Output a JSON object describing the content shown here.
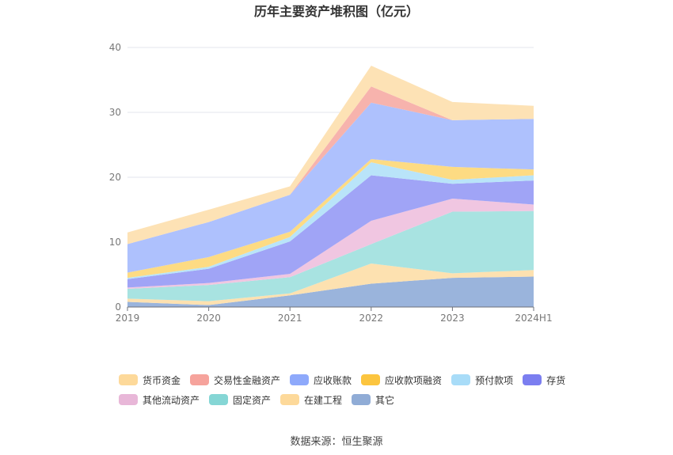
{
  "chart_data": {
    "type": "area",
    "stacked": true,
    "title": "历年主要资产堆积图（亿元）",
    "x": [
      "2019",
      "2020",
      "2021",
      "2022",
      "2023",
      "2024H1"
    ],
    "ylim": [
      0,
      40
    ],
    "yticks": [
      "0",
      "10",
      "20",
      "30",
      "40"
    ],
    "grid": true,
    "legend_position": "bottom",
    "series": [
      {
        "name": "其它",
        "color": "#9ab4dc",
        "values": [
          0.8,
          0.3,
          1.8,
          3.6,
          4.5,
          4.7
        ]
      },
      {
        "name": "在建工程",
        "color": "#fde1b0",
        "values": [
          0.5,
          0.6,
          0.3,
          3.1,
          0.7,
          1.0
        ]
      },
      {
        "name": "固定资产",
        "color": "#a8e3e1",
        "values": [
          1.5,
          2.5,
          2.5,
          3.0,
          9.5,
          9.1
        ]
      },
      {
        "name": "其他流动资产",
        "color": "#f0c6e1",
        "values": [
          0.2,
          0.3,
          0.5,
          3.6,
          2.0,
          1.0
        ]
      },
      {
        "name": "存货",
        "color": "#a0a4f6",
        "values": [
          1.3,
          2.2,
          5.0,
          7.0,
          2.3,
          3.7
        ]
      },
      {
        "name": "预付款项",
        "color": "#b9e4f9",
        "values": [
          0.2,
          0.3,
          0.7,
          2.0,
          0.6,
          0.8
        ]
      },
      {
        "name": "应收款项融资",
        "color": "#fddb83",
        "values": [
          0.8,
          1.5,
          0.8,
          0.5,
          2.0,
          0.9
        ]
      },
      {
        "name": "应收账款",
        "color": "#aec1fd",
        "values": [
          4.4,
          5.4,
          5.7,
          8.7,
          7.2,
          7.8
        ]
      },
      {
        "name": "交易性金融资产",
        "color": "#f7b3ad",
        "values": [
          0.0,
          0.0,
          0.0,
          2.5,
          0.0,
          0.0
        ]
      },
      {
        "name": "货币资金",
        "color": "#fde2b5",
        "values": [
          1.8,
          1.9,
          1.3,
          3.2,
          2.8,
          2.0
        ]
      }
    ]
  },
  "legend": {
    "row1": [
      {
        "label": "货币资金",
        "color": "#fdd99a"
      },
      {
        "label": "交易性金融资产",
        "color": "#f6a39c"
      },
      {
        "label": "应收账款",
        "color": "#8ea9fb"
      },
      {
        "label": "应收款项融资",
        "color": "#fcc53f"
      },
      {
        "label": "预付款项",
        "color": "#a8dcf8"
      },
      {
        "label": "存货",
        "color": "#7b7ef0"
      }
    ],
    "row2": [
      {
        "label": "其他流动资产",
        "color": "#e8b7d8"
      },
      {
        "label": "固定资产",
        "color": "#85d6d5"
      },
      {
        "label": "在建工程",
        "color": "#fdd99a"
      },
      {
        "label": "其它",
        "color": "#90acd6"
      }
    ]
  },
  "source": "数据来源：恒生聚源"
}
